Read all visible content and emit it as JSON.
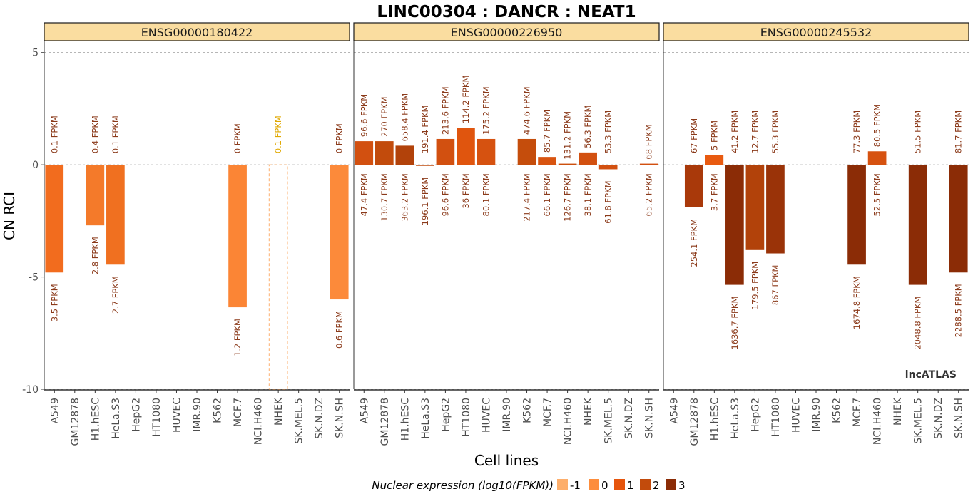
{
  "chart_data": {
    "type": "bar",
    "title": "LINC00304 : DANCR : NEAT1",
    "xlabel": "Cell lines",
    "ylabel": "CN RCI",
    "ylim": [
      -10,
      5.5
    ],
    "yticks": [
      5,
      0,
      -5,
      -10
    ],
    "ytick_labels": [
      "5",
      "0",
      "-5",
      "-10"
    ],
    "grid": true,
    "categories": [
      "A549",
      "GM12878",
      "H1.hESC",
      "HeLa.S3",
      "HepG2",
      "HT1080",
      "HUVEC",
      "IMR.90",
      "K562",
      "MCF.7",
      "NCI.H460",
      "NHEK",
      "SK.MEL.5",
      "SK.N.DZ",
      "SK.N.SH"
    ],
    "legend": {
      "title": "Nuclear expression (log10(FPKM))",
      "position": "bottom",
      "items": [
        {
          "label": "-1",
          "color": "#fdae6b"
        },
        {
          "label": "0",
          "color": "#fd8d3c"
        },
        {
          "label": "1",
          "color": "#e6550d"
        },
        {
          "label": "2",
          "color": "#c24b0c"
        },
        {
          "label": "3",
          "color": "#8b2c06"
        }
      ]
    },
    "watermark": "lncATLAS",
    "panels": [
      {
        "name": "ENSG00000180422",
        "values": [
          -4.8,
          null,
          -2.7,
          -4.45,
          null,
          null,
          null,
          null,
          null,
          -6.35,
          null,
          -10.0,
          null,
          null,
          -6.0
        ],
        "colors": [
          "#f26c1e",
          null,
          "#f47a2a",
          "#f07020",
          null,
          null,
          null,
          null,
          null,
          "#fb8535",
          null,
          "#fdae6b",
          null,
          null,
          "#fc8a3a"
        ],
        "dashed": [
          false,
          false,
          false,
          false,
          false,
          false,
          false,
          false,
          false,
          false,
          false,
          true,
          false,
          false,
          false
        ],
        "top_labels": [
          "0.1 FPKM",
          "",
          "0.4 FPKM",
          "0.1 FPKM",
          "",
          "",
          "",
          "",
          "",
          "0 FPKM",
          "",
          "0.1 FPKM",
          "",
          "",
          "0 FPKM"
        ],
        "bottom_labels": [
          "3.5 FPKM",
          "",
          "2.8 FPKM",
          "2.7 FPKM",
          "",
          "",
          "",
          "",
          "",
          "1.2 FPKM",
          "",
          "",
          "",
          "",
          "0.6 FPKM"
        ]
      },
      {
        "name": "ENSG00000226950",
        "values": [
          1.05,
          1.05,
          0.85,
          -0.05,
          1.15,
          1.65,
          1.15,
          null,
          1.15,
          0.35,
          0.05,
          0.55,
          -0.2,
          null,
          0.05
        ],
        "colors": [
          "#d25010",
          "#c24b0c",
          "#b2420a",
          "#bf4a0c",
          "#d25010",
          "#e0550e",
          "#d65210",
          null,
          "#c54d0c",
          "#d85410",
          "#cc500e",
          "#d25010",
          "#d25010",
          null,
          "#d25010"
        ],
        "dashed": [
          false,
          false,
          false,
          false,
          false,
          false,
          false,
          false,
          false,
          false,
          false,
          false,
          false,
          false,
          false
        ],
        "top_labels": [
          "96.6 FPKM",
          "270 FPKM",
          "658.4 FPKM",
          "191.4 FPKM",
          "213.6 FPKM",
          "114.2 FPKM",
          "175.2 FPKM",
          "",
          "474.6 FPKM",
          "85.7 FPKM",
          "131.2 FPKM",
          "56.3 FPKM",
          "53.3 FPKM",
          "",
          "68 FPKM"
        ],
        "bottom_labels": [
          "47.4 FPKM",
          "130.7 FPKM",
          "363.2 FPKM",
          "196.1 FPKM",
          "96.6 FPKM",
          "36 FPKM",
          "80.1 FPKM",
          "",
          "217.4 FPKM",
          "66.1 FPKM",
          "126.7 FPKM",
          "38.1 FPKM",
          "61.8 FPKM",
          "",
          "65.2 FPKM"
        ]
      },
      {
        "name": "ENSG00000245532",
        "values": [
          null,
          -1.9,
          0.45,
          -5.35,
          -3.8,
          -3.95,
          null,
          null,
          null,
          -4.45,
          0.6,
          null,
          -5.35,
          null,
          -4.8
        ],
        "colors": [
          null,
          "#a9390a",
          "#e85a10",
          "#8b2c06",
          "#b2420a",
          "#9a3308",
          null,
          null,
          null,
          "#8b2c06",
          "#d65210",
          null,
          "#8b2c06",
          null,
          "#8b2c06"
        ],
        "dashed": [
          false,
          false,
          false,
          false,
          false,
          false,
          false,
          false,
          false,
          false,
          false,
          false,
          false,
          false,
          false
        ],
        "top_labels": [
          "",
          "67 FPKM",
          "5 FPKM",
          "41.2 FPKM",
          "12.7 FPKM",
          "55.3 FPKM",
          "",
          "",
          "",
          "77.3 FPKM",
          "80.5 FPKM",
          "",
          "51.5 FPKM",
          "",
          "81.7 FPKM"
        ],
        "bottom_labels": [
          "",
          "254.1 FPKM",
          "3.7 FPKM",
          "1636.7 FPKM",
          "179.5 FPKM",
          "867 FPKM",
          "",
          "",
          "",
          "1674.8 FPKM",
          "52.5 FPKM",
          "",
          "2048.8 FPKM",
          "",
          "2288.5 FPKM"
        ]
      }
    ]
  }
}
